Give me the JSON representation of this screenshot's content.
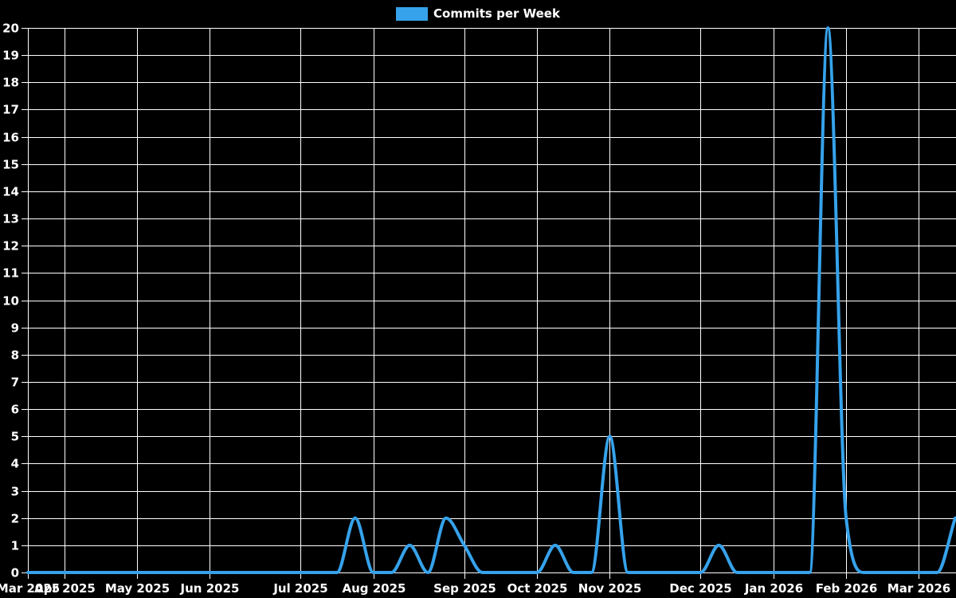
{
  "legend": {
    "label": "Commits per Week"
  },
  "chart_data": {
    "type": "line",
    "title": "Commits per Week",
    "background_color": "#000000",
    "grid_color": "#ffffff",
    "text_color": "#ffffff",
    "grid": true,
    "legend_position": "top-center",
    "x": {
      "unit": "weeks",
      "tick_labels": [
        "Mar 2025",
        "Apr 2025",
        "May 2025",
        "Jun 2025",
        "Jul 2025",
        "Aug 2025",
        "Sep 2025",
        "Oct 2025",
        "Nov 2025",
        "Dec 2025",
        "Jan 2026",
        "Feb 2026",
        "Mar 2026"
      ],
      "tick_week_indices": [
        0,
        2,
        6,
        10,
        15,
        19,
        24,
        28,
        32,
        37,
        41,
        45,
        49
      ],
      "total_weeks": 52
    },
    "y": {
      "min": 0,
      "max": 20,
      "tick_step": 1
    },
    "series": [
      {
        "name": "Commits per Week",
        "color": "#36a2eb",
        "line_width": 4,
        "interpolation": "monotone",
        "values": [
          0,
          0,
          0,
          0,
          0,
          0,
          0,
          0,
          0,
          0,
          0,
          0,
          0,
          0,
          0,
          0,
          0,
          0,
          2,
          0,
          0,
          1,
          0,
          2,
          1,
          0,
          0,
          0,
          0,
          1,
          0,
          0,
          5,
          0,
          0,
          0,
          0,
          0,
          1,
          0,
          0,
          0,
          0,
          0,
          20,
          2,
          0,
          0,
          0,
          0,
          0,
          2
        ]
      }
    ]
  }
}
